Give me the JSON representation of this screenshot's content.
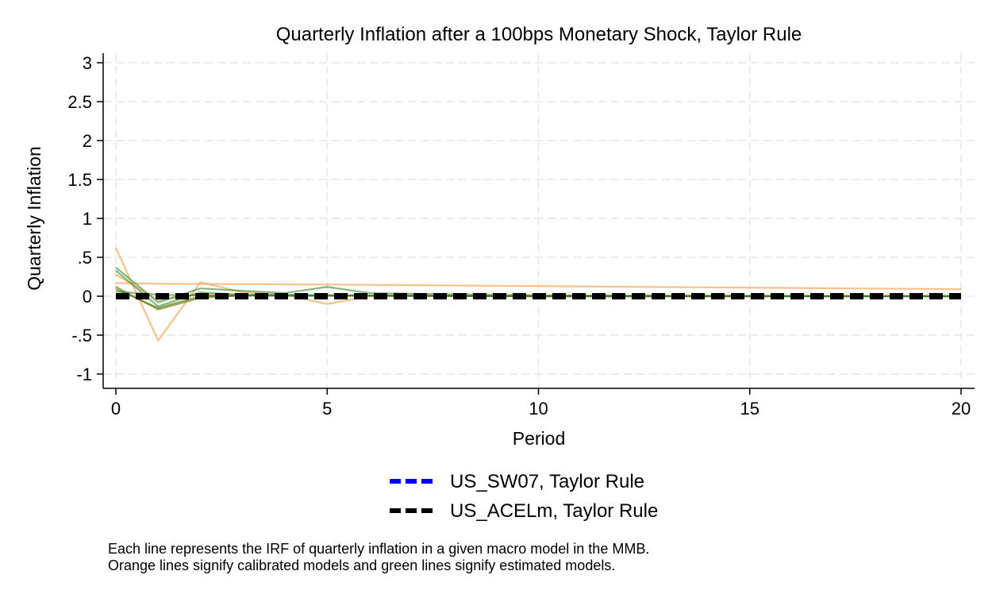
{
  "chart_data": {
    "type": "line",
    "title": "Quarterly Inflation after a 100bps Monetary Shock, Taylor Rule",
    "xlabel": "Period",
    "ylabel": "Quarterly Inflation",
    "xlim": [
      0,
      20
    ],
    "ylim": [
      -1,
      3
    ],
    "x_ticks": [
      0,
      5,
      10,
      15,
      20
    ],
    "y_ticks": [
      {
        "value": 3,
        "label": "3"
      },
      {
        "value": 2.5,
        "label": "2.5"
      },
      {
        "value": 2,
        "label": "2"
      },
      {
        "value": 1.5,
        "label": "1.5"
      },
      {
        "value": 1,
        "label": "1"
      },
      {
        "value": 0.5,
        "label": ".5"
      },
      {
        "value": 0,
        "label": "0"
      },
      {
        "value": -0.5,
        "label": "-.5"
      },
      {
        "value": -1,
        "label": "-1"
      }
    ],
    "grid": true,
    "legend_position": "bottom",
    "colors": {
      "calibrated": "#f5a04a",
      "estimated": "#2e8b2e",
      "estimated_dark": "#5a6e00",
      "us_sw07": "#0000ff",
      "us_acelm": "#000000",
      "grid": "#e6e6e6"
    },
    "background_series": [
      {
        "group": "calibrated",
        "x": [
          0,
          1,
          2,
          3,
          4,
          5,
          6,
          10,
          15,
          20
        ],
        "y": [
          0.62,
          -0.57,
          0.18,
          0.05,
          0.02,
          -0.1,
          0.0,
          0.0,
          0.0,
          0.0
        ]
      },
      {
        "group": "calibrated",
        "x": [
          0,
          1,
          5,
          10,
          15,
          20
        ],
        "y": [
          0.17,
          0.16,
          0.15,
          0.13,
          0.11,
          0.09
        ]
      },
      {
        "group": "calibrated",
        "x": [
          0,
          1,
          2,
          3,
          10,
          20
        ],
        "y": [
          0.28,
          -0.05,
          0.03,
          0.01,
          0.0,
          0.0
        ]
      },
      {
        "group": "estimated",
        "x": [
          0,
          1,
          2,
          3,
          4,
          5,
          6,
          10,
          20
        ],
        "y": [
          0.37,
          -0.08,
          0.1,
          0.07,
          0.04,
          0.12,
          0.04,
          0.01,
          0.0
        ]
      },
      {
        "group": "estimated",
        "x": [
          0,
          1,
          2,
          3,
          10,
          20
        ],
        "y": [
          0.33,
          -0.13,
          0.05,
          0.02,
          0.0,
          0.0
        ]
      },
      {
        "group": "estimated_dark",
        "x": [
          0,
          1,
          2,
          3,
          10,
          20
        ],
        "y": [
          0.12,
          -0.17,
          -0.02,
          0.01,
          0.0,
          0.0
        ]
      },
      {
        "group": "estimated_dark",
        "x": [
          0,
          1,
          2,
          3,
          10,
          20
        ],
        "y": [
          0.09,
          -0.15,
          0.0,
          0.01,
          0.0,
          0.0
        ]
      },
      {
        "group": "estimated",
        "x": [
          0,
          1,
          2,
          20
        ],
        "y": [
          0.06,
          0.02,
          0.01,
          0.0
        ]
      }
    ],
    "series": [
      {
        "name": "US_SW07, Taylor Rule",
        "color": "#0000ff",
        "x": [
          0,
          5,
          10,
          15,
          20
        ],
        "y": [
          0.0,
          0.0,
          0.0,
          0.0,
          0.0
        ]
      },
      {
        "name": "US_ACELm, Taylor Rule",
        "color": "#000000",
        "x": [
          0,
          5,
          10,
          15,
          20
        ],
        "y": [
          0.0,
          0.0,
          0.0,
          0.0,
          0.0
        ]
      }
    ]
  },
  "notes": {
    "line1": "Each line represents the IRF of quarterly inflation in a given macro model in the MMB.",
    "line2": "Orange lines signify calibrated models and green lines signify estimated models."
  }
}
